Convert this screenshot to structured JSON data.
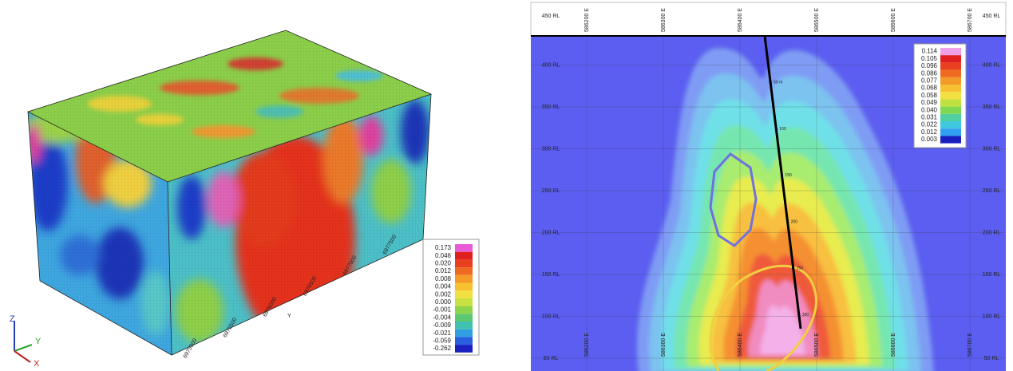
{
  "left_panel": {
    "legend": [
      "0.173",
      "0.046",
      "0.020",
      "0.012",
      "0.008",
      "0.004",
      "0.002",
      "0.000",
      "-0.001",
      "-0.004",
      "-0.009",
      "-0.021",
      "-0.059",
      "-0.262"
    ],
    "y_ticks": [
      "6975000",
      "6975500",
      "6976000",
      "6976500",
      "6977000",
      "6977500"
    ],
    "axis_y": "Y",
    "triad": {
      "x": "X",
      "y": "Y",
      "z": "Z"
    }
  },
  "right_panel": {
    "rl_labels": [
      "450 RL",
      "400 RL",
      "350 RL",
      "300 RL",
      "250 RL",
      "200 RL",
      "150 RL",
      "100 RL",
      "50 RL"
    ],
    "e_labels": [
      "586200 E",
      "586300 E",
      "586400 E",
      "586500 E",
      "586600 E",
      "586700 E"
    ],
    "legend": [
      "0.114",
      "0.105",
      "0.096",
      "0.086",
      "0.077",
      "0.068",
      "0.058",
      "0.049",
      "0.040",
      "0.031",
      "0.022",
      "0.012",
      "0.003"
    ],
    "hole_labels": [
      "50 m",
      "100",
      "150",
      "200",
      "250",
      "300"
    ]
  }
}
